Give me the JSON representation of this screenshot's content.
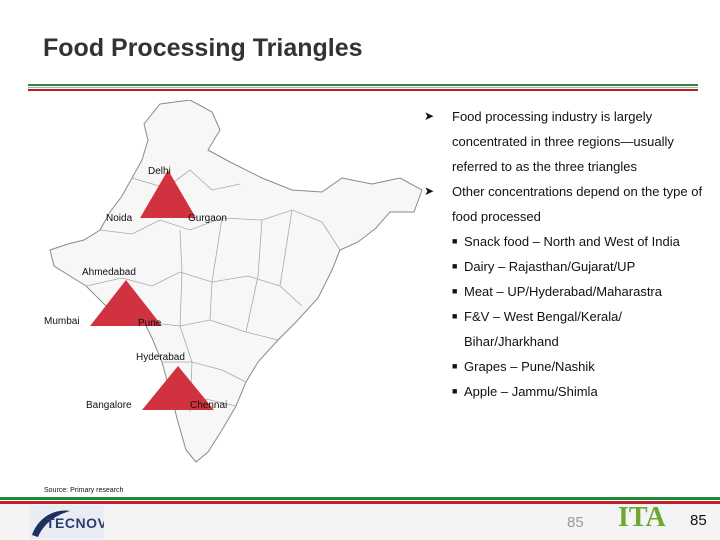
{
  "title": "Food Processing Triangles",
  "colors": {
    "green": "#2e8b3a",
    "red": "#b22222",
    "triangle": "#d0323f"
  },
  "map": {
    "cities": {
      "delhi": "Delhi",
      "noida": "Noida",
      "gurgaon": "Gurgaon",
      "ahmedabad": "Ahmedabad",
      "mumbai": "Mumbai",
      "pune": "Pune",
      "hyderabad": "Hyderabad",
      "bangalore": "Bangalore",
      "chennai": "Chennai"
    }
  },
  "bullets": [
    {
      "text": "Food processing industry is largely concentrated in three regions—usually referred to as the three triangles"
    },
    {
      "text": "Other concentrations depend on the type of food processed"
    }
  ],
  "sub_bullets": [
    "Snack food – North and West of India",
    "Dairy – Rajasthan/Gujarat/UP",
    "Meat – UP/Hyderabad/Maharastra",
    "F&V – West Bengal/Kerala/ Bihar/Jharkhand",
    "Grapes – Pune/Nashik",
    "Apple – Jammu/Shimla"
  ],
  "source": "Source: Primary research",
  "footer": {
    "left_logo": "TECNOVA",
    "left_number": "85",
    "right_logo": "ITA",
    "page_number": "85"
  },
  "icons": {
    "bullet_arrow": "arrow-bullet-icon",
    "sub_bullet": "square-bullet-icon"
  }
}
